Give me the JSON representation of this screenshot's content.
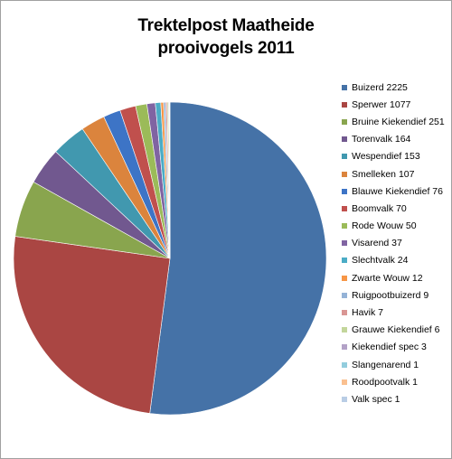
{
  "chart_data": {
    "type": "pie",
    "title_line1": "Trektelpost Maatheide",
    "title_line2": "prooivogels 2011",
    "legend_position": "right",
    "series": [
      {
        "name": "Buizerd",
        "value": 2225,
        "label": "Buizerd 2225",
        "color": "#4572A7"
      },
      {
        "name": "Sperwer",
        "value": 1077,
        "label": "Sperwer 1077",
        "color": "#AA4643"
      },
      {
        "name": "Bruine Kiekendief",
        "value": 251,
        "label": "Bruine Kiekendief 251",
        "color": "#89A54E"
      },
      {
        "name": "Torenvalk",
        "value": 164,
        "label": "Torenvalk 164",
        "color": "#71588F"
      },
      {
        "name": "Wespendief",
        "value": 153,
        "label": "Wespendief 153",
        "color": "#4198AF"
      },
      {
        "name": "Smelleken",
        "value": 107,
        "label": "Smelleken 107",
        "color": "#DB843D"
      },
      {
        "name": "Blauwe Kiekendief",
        "value": 76,
        "label": "Blauwe Kiekendief 76",
        "color": "#3D74C6"
      },
      {
        "name": "Boomvalk",
        "value": 70,
        "label": "Boomvalk 70",
        "color": "#C0504D"
      },
      {
        "name": "Rode Wouw",
        "value": 50,
        "label": "Rode Wouw 50",
        "color": "#9BBB59"
      },
      {
        "name": "Visarend",
        "value": 37,
        "label": "Visarend 37",
        "color": "#8064A2"
      },
      {
        "name": "Slechtvalk",
        "value": 24,
        "label": "Slechtvalk 24",
        "color": "#4BACC6"
      },
      {
        "name": "Zwarte Wouw",
        "value": 12,
        "label": "Zwarte Wouw 12",
        "color": "#F79646"
      },
      {
        "name": "Ruigpootbuizerd",
        "value": 9,
        "label": "Ruigpootbuizerd 9",
        "color": "#95B3D7"
      },
      {
        "name": "Havik",
        "value": 7,
        "label": "Havik 7",
        "color": "#D99694"
      },
      {
        "name": "Grauwe Kiekendief",
        "value": 6,
        "label": "Grauwe Kiekendief 6",
        "color": "#C3D69B"
      },
      {
        "name": "Kiekendief spec",
        "value": 3,
        "label": "Kiekendief spec 3",
        "color": "#B3A2C7"
      },
      {
        "name": "Slangenarend",
        "value": 1,
        "label": "Slangenarend 1",
        "color": "#93CDDD"
      },
      {
        "name": "Roodpootvalk",
        "value": 1,
        "label": "Roodpootvalk 1",
        "color": "#FAC090"
      },
      {
        "name": "Valk spec",
        "value": 1,
        "label": "Valk spec 1",
        "color": "#B9CDE5"
      }
    ]
  }
}
